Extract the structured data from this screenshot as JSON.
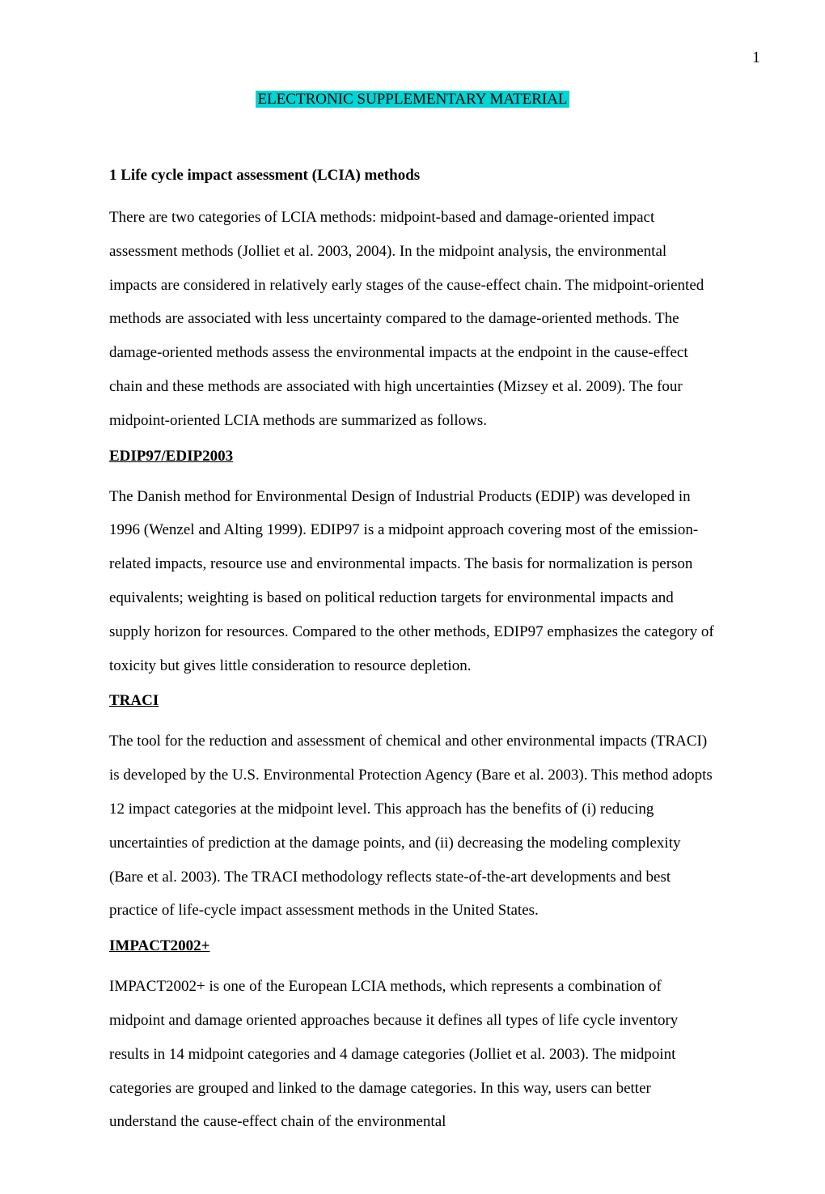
{
  "page_number": "1",
  "title": "ELECTRONIC SUPPLEMENTARY MATERIAL",
  "section1": {
    "heading": "1 Life cycle impact assessment (LCIA) methods",
    "intro": "There are two categories of LCIA methods: midpoint-based and damage-oriented impact assessment methods (Jolliet et al. 2003, 2004). In the midpoint analysis, the environmental impacts are considered in relatively early stages of the cause-effect chain. The midpoint-oriented methods are associated with less uncertainty compared to the damage-oriented methods. The damage-oriented methods assess the environmental impacts at the endpoint in the cause-effect chain and these methods are associated with high uncertainties (Mizsey et al. 2009). The four midpoint-oriented LCIA methods are summarized as follows."
  },
  "edip": {
    "heading": "EDIP97/EDIP2003",
    "text": "The Danish method for Environmental Design of Industrial Products (EDIP) was developed in 1996 (Wenzel and Alting 1999). EDIP97 is a midpoint approach covering most of the emission-related impacts, resource use and environmental impacts. The basis for normalization is person equivalents; weighting is based on political reduction targets for environmental impacts and supply horizon for resources. Compared to the other methods, EDIP97 emphasizes the category of toxicity but gives little consideration to resource depletion."
  },
  "traci": {
    "heading": "TRACI",
    "text": "The tool for the reduction and assessment of chemical and other environmental impacts (TRACI) is developed by the U.S. Environmental Protection Agency (Bare et al. 2003). This method adopts 12 impact categories at the midpoint level. This approach has the benefits of (i) reducing uncertainties of prediction at the damage points, and (ii) decreasing the modeling complexity (Bare et al. 2003). The TRACI methodology reflects state-of-the-art developments and best practice of life-cycle impact assessment methods in the United States."
  },
  "impact": {
    "heading": "IMPACT2002+",
    "text": "IMPACT2002+ is one of the European LCIA methods, which represents a combination of midpoint and damage oriented approaches because it defines all types of life cycle inventory results in 14 midpoint categories and 4 damage categories (Jolliet et al. 2003). The midpoint categories are grouped and linked to the damage categories. In this way, users can better understand the cause-effect chain of the environmental"
  },
  "colors": {
    "highlight_bg": "#00d4d4",
    "text": "#000000",
    "background": "#ffffff"
  },
  "fonts": {
    "body_size": 19,
    "line_height": 2.2
  }
}
